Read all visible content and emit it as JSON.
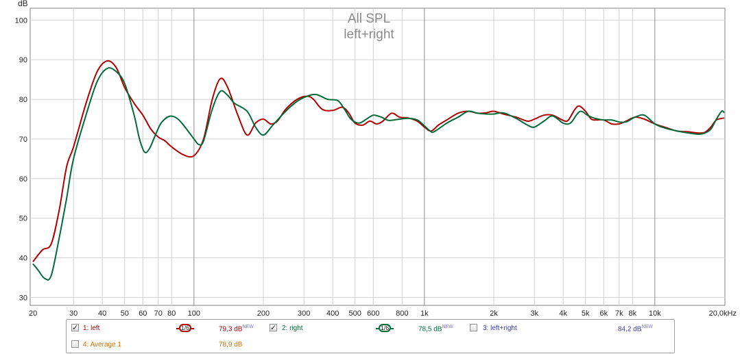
{
  "chart_data": {
    "type": "line",
    "title": "All SPL",
    "subtitle": "left+right",
    "ylabel": "dB",
    "xunit": "Hz",
    "x_scale": "log",
    "xlim": [
      20,
      20000
    ],
    "ylim": [
      28,
      103
    ],
    "grid": true,
    "yticks": [
      30,
      40,
      50,
      60,
      70,
      80,
      90,
      100
    ],
    "xticks": [
      {
        "v": 20,
        "label": "20"
      },
      {
        "v": 30,
        "label": "30"
      },
      {
        "v": 40,
        "label": "40"
      },
      {
        "v": 50,
        "label": "50"
      },
      {
        "v": 60,
        "label": "60"
      },
      {
        "v": 70,
        "label": "70"
      },
      {
        "v": 80,
        "label": "80"
      },
      {
        "v": 100,
        "label": "100"
      },
      {
        "v": 200,
        "label": "200"
      },
      {
        "v": 300,
        "label": "300"
      },
      {
        "v": 400,
        "label": "400"
      },
      {
        "v": 500,
        "label": "500"
      },
      {
        "v": 600,
        "label": "600"
      },
      {
        "v": 800,
        "label": "800"
      },
      {
        "v": 1000,
        "label": "1k"
      },
      {
        "v": 2000,
        "label": "2k"
      },
      {
        "v": 3000,
        "label": "3k"
      },
      {
        "v": 4000,
        "label": "4k"
      },
      {
        "v": 5000,
        "label": "5k"
      },
      {
        "v": 6000,
        "label": "6k"
      },
      {
        "v": 7000,
        "label": "7k"
      },
      {
        "v": 8000,
        "label": "8k"
      },
      {
        "v": 10000,
        "label": "10k"
      },
      {
        "v": 20000,
        "label": "20,0kHz"
      }
    ],
    "series": [
      {
        "name": "1: left",
        "color": "#b00000",
        "points": [
          [
            20,
            39
          ],
          [
            22,
            42
          ],
          [
            24,
            43.5
          ],
          [
            26,
            52
          ],
          [
            28,
            63
          ],
          [
            30,
            68
          ],
          [
            34,
            79
          ],
          [
            38,
            87
          ],
          [
            42,
            89.7
          ],
          [
            46,
            88
          ],
          [
            50,
            83
          ],
          [
            55,
            79
          ],
          [
            60,
            76
          ],
          [
            65,
            72.5
          ],
          [
            70,
            70.5
          ],
          [
            75,
            69.5
          ],
          [
            80,
            68
          ],
          [
            90,
            66
          ],
          [
            100,
            65.8
          ],
          [
            110,
            70
          ],
          [
            120,
            80
          ],
          [
            130,
            85.2
          ],
          [
            140,
            83
          ],
          [
            155,
            76
          ],
          [
            170,
            71
          ],
          [
            185,
            74
          ],
          [
            200,
            75
          ],
          [
            215,
            73.8
          ],
          [
            230,
            74.5
          ],
          [
            250,
            77.5
          ],
          [
            280,
            80
          ],
          [
            310,
            80.8
          ],
          [
            330,
            80
          ],
          [
            360,
            77.5
          ],
          [
            400,
            77.2
          ],
          [
            440,
            78
          ],
          [
            470,
            76.5
          ],
          [
            500,
            74
          ],
          [
            540,
            73.5
          ],
          [
            580,
            74.5
          ],
          [
            620,
            73.8
          ],
          [
            660,
            74.5
          ],
          [
            720,
            76.5
          ],
          [
            780,
            75.5
          ],
          [
            850,
            75.3
          ],
          [
            930,
            74.5
          ],
          [
            1000,
            73
          ],
          [
            1070,
            72
          ],
          [
            1150,
            73.5
          ],
          [
            1250,
            74.8
          ],
          [
            1400,
            76.5
          ],
          [
            1550,
            77
          ],
          [
            1700,
            76.5
          ],
          [
            1850,
            76.6
          ],
          [
            2000,
            77
          ],
          [
            2200,
            76.3
          ],
          [
            2500,
            75.5
          ],
          [
            2800,
            74.5
          ],
          [
            3000,
            75
          ],
          [
            3300,
            76
          ],
          [
            3600,
            76
          ],
          [
            4000,
            74.7
          ],
          [
            4200,
            74.7
          ],
          [
            4500,
            77.5
          ],
          [
            4700,
            78.3
          ],
          [
            5000,
            77
          ],
          [
            5300,
            75
          ],
          [
            5600,
            74.8
          ],
          [
            6000,
            74.8
          ],
          [
            6500,
            73.8
          ],
          [
            7000,
            73.8
          ],
          [
            7500,
            74.5
          ],
          [
            8200,
            75.5
          ],
          [
            9000,
            75
          ],
          [
            10000,
            73.8
          ],
          [
            11000,
            73
          ],
          [
            12500,
            72
          ],
          [
            14000,
            71.8
          ],
          [
            15500,
            71.5
          ],
          [
            16500,
            71.7
          ],
          [
            17500,
            73
          ],
          [
            18500,
            74.8
          ],
          [
            20000,
            75.3
          ]
        ]
      },
      {
        "name": "2: right",
        "color": "#006a38",
        "points": [
          [
            20,
            38.5
          ],
          [
            21,
            37
          ],
          [
            22.5,
            34.8
          ],
          [
            24,
            35.5
          ],
          [
            26,
            45
          ],
          [
            28,
            55
          ],
          [
            30,
            65
          ],
          [
            34,
            76
          ],
          [
            38,
            84.5
          ],
          [
            42,
            87.8
          ],
          [
            46,
            87
          ],
          [
            50,
            84
          ],
          [
            55,
            76
          ],
          [
            58,
            70
          ],
          [
            61,
            66.7
          ],
          [
            64,
            67.5
          ],
          [
            68,
            71
          ],
          [
            72,
            74
          ],
          [
            78,
            75.7
          ],
          [
            84,
            75.3
          ],
          [
            90,
            73.5
          ],
          [
            100,
            70
          ],
          [
            105,
            68.6
          ],
          [
            110,
            69.5
          ],
          [
            120,
            77.5
          ],
          [
            130,
            82
          ],
          [
            140,
            81
          ],
          [
            150,
            79
          ],
          [
            170,
            77
          ],
          [
            185,
            73
          ],
          [
            200,
            71
          ],
          [
            220,
            73.5
          ],
          [
            250,
            77
          ],
          [
            280,
            79.5
          ],
          [
            310,
            80.8
          ],
          [
            340,
            81.2
          ],
          [
            380,
            80
          ],
          [
            420,
            79.7
          ],
          [
            450,
            77.5
          ],
          [
            480,
            75
          ],
          [
            520,
            74
          ],
          [
            560,
            75
          ],
          [
            600,
            76
          ],
          [
            650,
            75.5
          ],
          [
            700,
            74.7
          ],
          [
            780,
            75
          ],
          [
            850,
            75.2
          ],
          [
            930,
            74.8
          ],
          [
            1000,
            73.3
          ],
          [
            1060,
            72
          ],
          [
            1100,
            71.8
          ],
          [
            1250,
            74
          ],
          [
            1400,
            75.5
          ],
          [
            1550,
            77
          ],
          [
            1700,
            76.5
          ],
          [
            1850,
            76.3
          ],
          [
            2000,
            76.3
          ],
          [
            2200,
            76.6
          ],
          [
            2500,
            75.2
          ],
          [
            2800,
            73.5
          ],
          [
            3000,
            73
          ],
          [
            3300,
            74.5
          ],
          [
            3600,
            75.8
          ],
          [
            4000,
            74
          ],
          [
            4300,
            74
          ],
          [
            4600,
            76.3
          ],
          [
            4800,
            77
          ],
          [
            5100,
            76
          ],
          [
            5500,
            75.2
          ],
          [
            6000,
            74.8
          ],
          [
            6500,
            74.8
          ],
          [
            7000,
            74.3
          ],
          [
            7500,
            74.3
          ],
          [
            8200,
            75.5
          ],
          [
            9000,
            76
          ],
          [
            10000,
            73.8
          ],
          [
            11000,
            72.8
          ],
          [
            12500,
            72
          ],
          [
            14000,
            71.5
          ],
          [
            15500,
            71.2
          ],
          [
            16500,
            71.5
          ],
          [
            17500,
            72.5
          ],
          [
            18500,
            75
          ],
          [
            19500,
            77
          ],
          [
            20000,
            76.6
          ]
        ]
      }
    ]
  },
  "legend": {
    "row1": [
      {
        "label": "1: left",
        "checked": true,
        "color": "#b00000",
        "smoothing": "1/6",
        "value": "79,3 dB",
        "badge": "NEW"
      },
      {
        "label": "2: right",
        "checked": true,
        "color": "#006a38",
        "smoothing": "1/6",
        "value": "78,5 dB",
        "badge": "NEW"
      },
      {
        "label": "3: left+right",
        "checked": false,
        "color": "#3a3aa8",
        "value": "84,2 dB",
        "badge": "NEW"
      }
    ],
    "row2": [
      {
        "label": "4: Average 1",
        "checked": false,
        "color": "#d07000",
        "value": "78,9 dB"
      }
    ]
  }
}
